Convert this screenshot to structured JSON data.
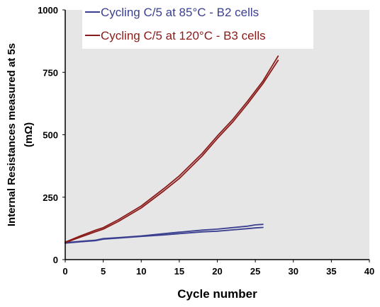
{
  "chart_data": {
    "type": "line",
    "title": "",
    "xlabel": "Cycle number",
    "ylabel_lines": [
      "Internal Resistances measured at 5s",
      "(mΩ)"
    ],
    "xlim": [
      0,
      40
    ],
    "ylim": [
      0,
      1000
    ],
    "x_ticks": [
      0,
      5,
      10,
      15,
      20,
      25,
      30,
      35,
      40
    ],
    "y_ticks": [
      0,
      250,
      500,
      750,
      1000
    ],
    "grid": false,
    "plot_background": "#e6e6e6",
    "legend_position": "top",
    "series": [
      {
        "name": "Cycling C/5 at 85°C - B2 cells",
        "color": "#3a3f8f",
        "lines": [
          {
            "x": [
              0,
              2,
              4,
              5,
              7,
              10,
              13,
              15,
              18,
              20,
              22,
              24,
              25,
              26
            ],
            "y": [
              68,
              73,
              78,
              84,
              88,
              95,
              104,
              110,
              118,
              122,
              128,
              134,
              139,
              141
            ]
          },
          {
            "x": [
              0,
              2,
              4,
              5,
              7,
              10,
              13,
              15,
              18,
              20,
              22,
              24,
              25,
              26
            ],
            "y": [
              66,
              71,
              76,
              82,
              86,
              93,
              99,
              104,
              111,
              114,
              119,
              124,
              127,
              129
            ]
          }
        ]
      },
      {
        "name": "Cycling C/5 at 120°C - B3 cells",
        "color": "#8b1a1a",
        "lines": [
          {
            "x": [
              0,
              2,
              4,
              5,
              7,
              10,
              13,
              15,
              18,
              20,
              22,
              24,
              26,
              28
            ],
            "y": [
              70,
              95,
              118,
              128,
              160,
              215,
              285,
              335,
              425,
              495,
              560,
              635,
              715,
              815
            ]
          },
          {
            "x": [
              0,
              2,
              4,
              5,
              7,
              10,
              13,
              15,
              18,
              20,
              22,
              24,
              26,
              28
            ],
            "y": [
              68,
              90,
              112,
              122,
              153,
              207,
              276,
              325,
              415,
              485,
              550,
              625,
              705,
              798
            ]
          }
        ]
      }
    ]
  }
}
